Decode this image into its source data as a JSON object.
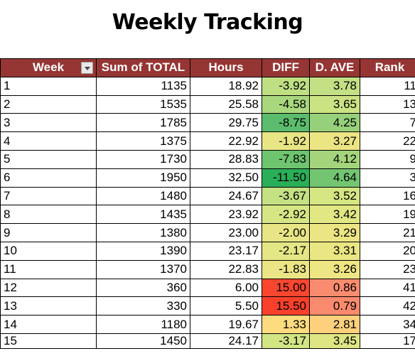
{
  "title": "Weekly Tracking",
  "headers": {
    "week": "Week",
    "total": "Sum of TOTAL",
    "hours": "Hours",
    "diff": "DIFF",
    "dave": "D. AVE",
    "rank": "Rank"
  },
  "rows": [
    {
      "week": "1",
      "total": "1135",
      "hours": "18.92",
      "diff": "-3.92",
      "dave": "3.78",
      "rank": "11",
      "diff_color": "#bedf82",
      "dave_color": "#c3e085"
    },
    {
      "week": "2",
      "total": "1535",
      "hours": "25.58",
      "diff": "-4.58",
      "dave": "3.65",
      "rank": "13",
      "diff_color": "#a9d77d",
      "dave_color": "#cce383"
    },
    {
      "week": "3",
      "total": "1785",
      "hours": "29.75",
      "diff": "-8.75",
      "dave": "4.25",
      "rank": "7",
      "diff_color": "#5cbc6d",
      "dave_color": "#97d07b"
    },
    {
      "week": "4",
      "total": "1375",
      "hours": "22.92",
      "diff": "-1.92",
      "dave": "3.27",
      "rank": "22",
      "diff_color": "#e8e585",
      "dave_color": "#ece583"
    },
    {
      "week": "5",
      "total": "1730",
      "hours": "28.83",
      "diff": "-7.83",
      "dave": "4.12",
      "rank": "9",
      "diff_color": "#6fc46f",
      "dave_color": "#a4d57d"
    },
    {
      "week": "6",
      "total": "1950",
      "hours": "32.50",
      "diff": "-11.50",
      "dave": "4.64",
      "rank": "3",
      "diff_color": "#2aae57",
      "dave_color": "#74c572"
    },
    {
      "week": "7",
      "total": "1480",
      "hours": "24.67",
      "diff": "-3.67",
      "dave": "3.52",
      "rank": "16",
      "diff_color": "#c4e184",
      "dave_color": "#d6e683"
    },
    {
      "week": "8",
      "total": "1435",
      "hours": "23.92",
      "diff": "-2.92",
      "dave": "3.42",
      "rank": "19",
      "diff_color": "#d6e685",
      "dave_color": "#e1e883"
    },
    {
      "week": "9",
      "total": "1380",
      "hours": "23.00",
      "diff": "-2.00",
      "dave": "3.29",
      "rank": "21",
      "diff_color": "#e7e585",
      "dave_color": "#ebe583"
    },
    {
      "week": "10",
      "total": "1390",
      "hours": "23.17",
      "diff": "-2.17",
      "dave": "3.31",
      "rank": "20",
      "diff_color": "#e5e685",
      "dave_color": "#e9e683"
    },
    {
      "week": "11",
      "total": "1370",
      "hours": "22.83",
      "diff": "-1.83",
      "dave": "3.26",
      "rank": "23",
      "diff_color": "#ebe585",
      "dave_color": "#eee583"
    },
    {
      "week": "12",
      "total": "360",
      "hours": "6.00",
      "diff": "15.00",
      "dave": "0.86",
      "rank": "41",
      "diff_color": "#f8462f",
      "dave_color": "#f98b6e"
    },
    {
      "week": "13",
      "total": "330",
      "hours": "5.50",
      "diff": "15.50",
      "dave": "0.79",
      "rank": "42",
      "diff_color": "#f8402b",
      "dave_color": "#f98a6d"
    },
    {
      "week": "14",
      "total": "1180",
      "hours": "19.67",
      "diff": "1.33",
      "dave": "2.81",
      "rank": "34",
      "diff_color": "#fddc80",
      "dave_color": "#fdd07e"
    },
    {
      "week": "15",
      "total": "1450",
      "hours": "24.17",
      "diff": "-3.17",
      "dave": "3.45",
      "rank": "17",
      "diff_color": "#d2e584",
      "dave_color": "#dee683"
    }
  ]
}
